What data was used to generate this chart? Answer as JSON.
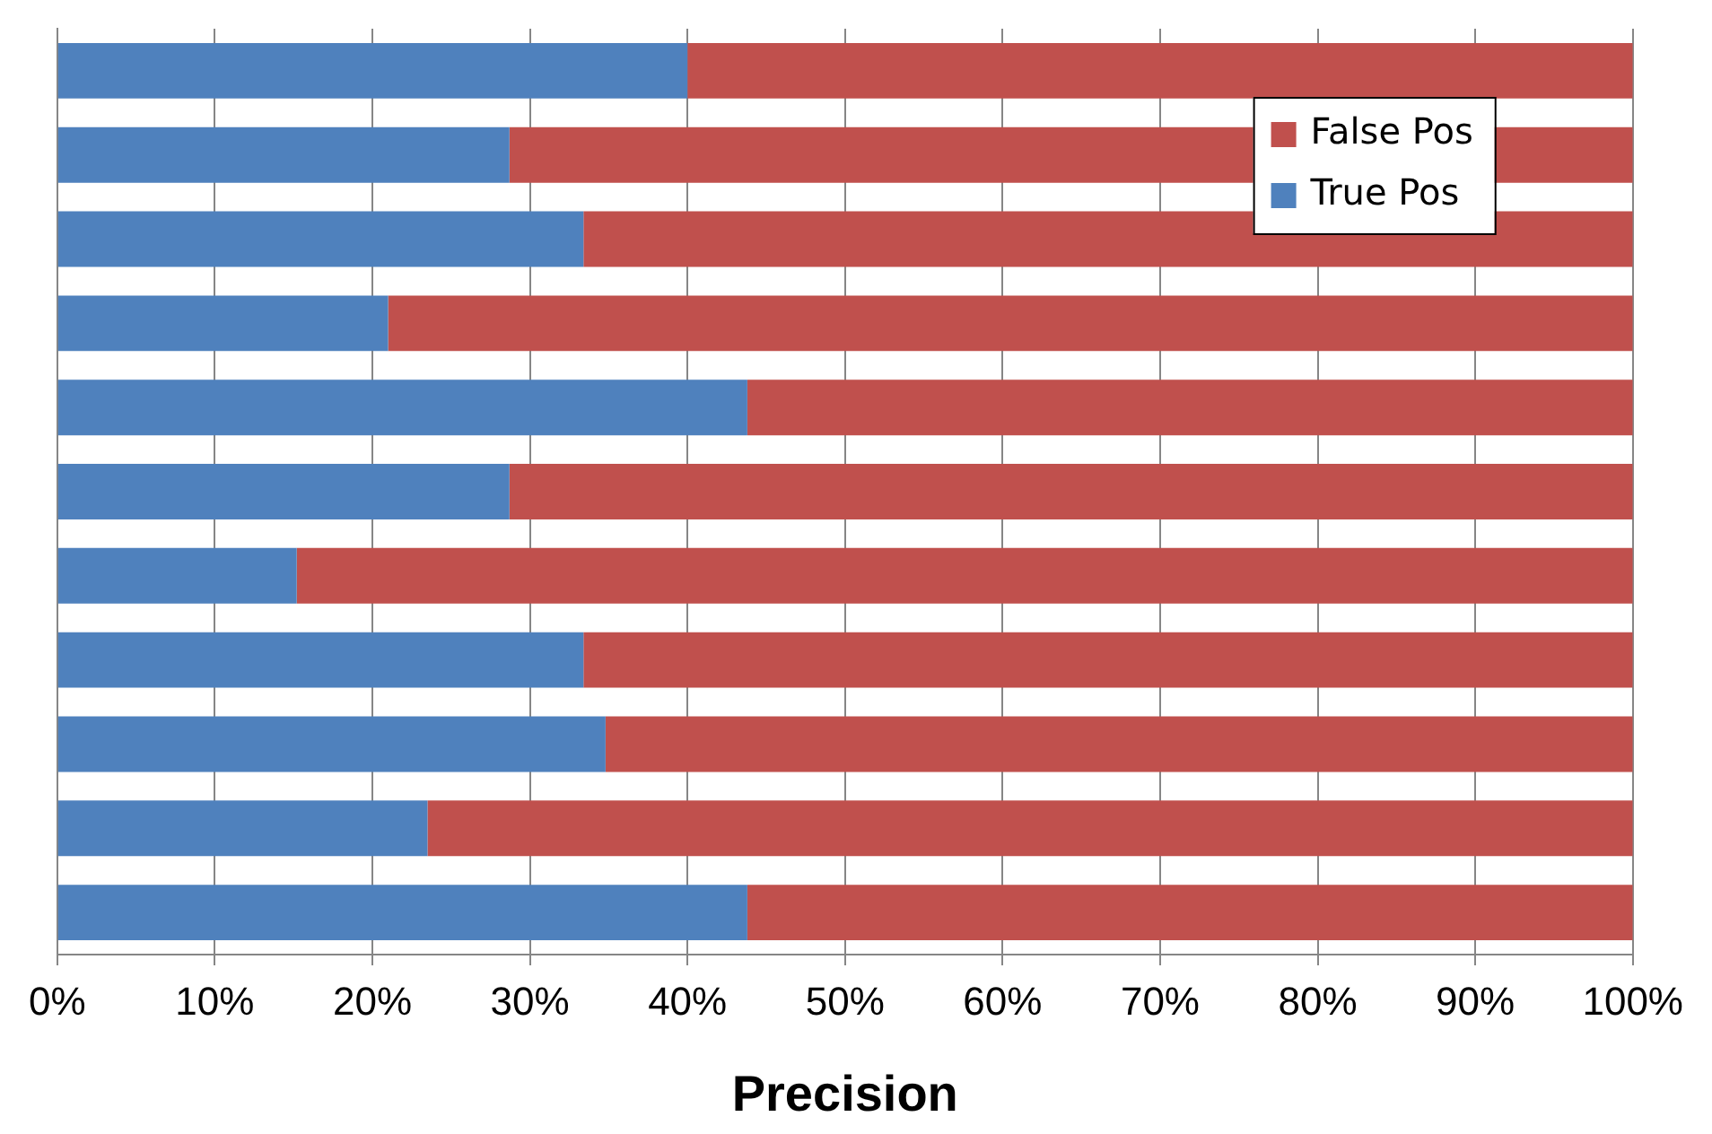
{
  "chart_data": {
    "type": "bar",
    "orientation": "horizontal",
    "stacked": true,
    "xlabel": "Precision",
    "categories": [
      null,
      null,
      null,
      null,
      null,
      null,
      null,
      null,
      null,
      null,
      null
    ],
    "series": [
      {
        "name": "True Pos",
        "color": "#4f81bd",
        "values": [
          40,
          28.7,
          33.4,
          21,
          43.8,
          28.7,
          15.2,
          33.4,
          34.8,
          23.5,
          43.8
        ]
      },
      {
        "name": "False Pos",
        "color": "#c0504d",
        "values": [
          60,
          71.3,
          66.6,
          79,
          56.2,
          71.3,
          84.8,
          66.6,
          65.2,
          76.5,
          56.2
        ]
      }
    ],
    "xlim": [
      0,
      100
    ],
    "xticks": [
      {
        "value": 0,
        "label": "0%"
      },
      {
        "value": 10,
        "label": "10%"
      },
      {
        "value": 20,
        "label": "20%"
      },
      {
        "value": 30,
        "label": "30%"
      },
      {
        "value": 40,
        "label": "40%"
      },
      {
        "value": 50,
        "label": "50%"
      },
      {
        "value": 60,
        "label": "60%"
      },
      {
        "value": 70,
        "label": "70%"
      },
      {
        "value": 80,
        "label": "80%"
      },
      {
        "value": 90,
        "label": "90%"
      },
      {
        "value": 100,
        "label": "100%"
      }
    ],
    "grid": "x",
    "legend": "top right",
    "tick_labels": "x"
  }
}
